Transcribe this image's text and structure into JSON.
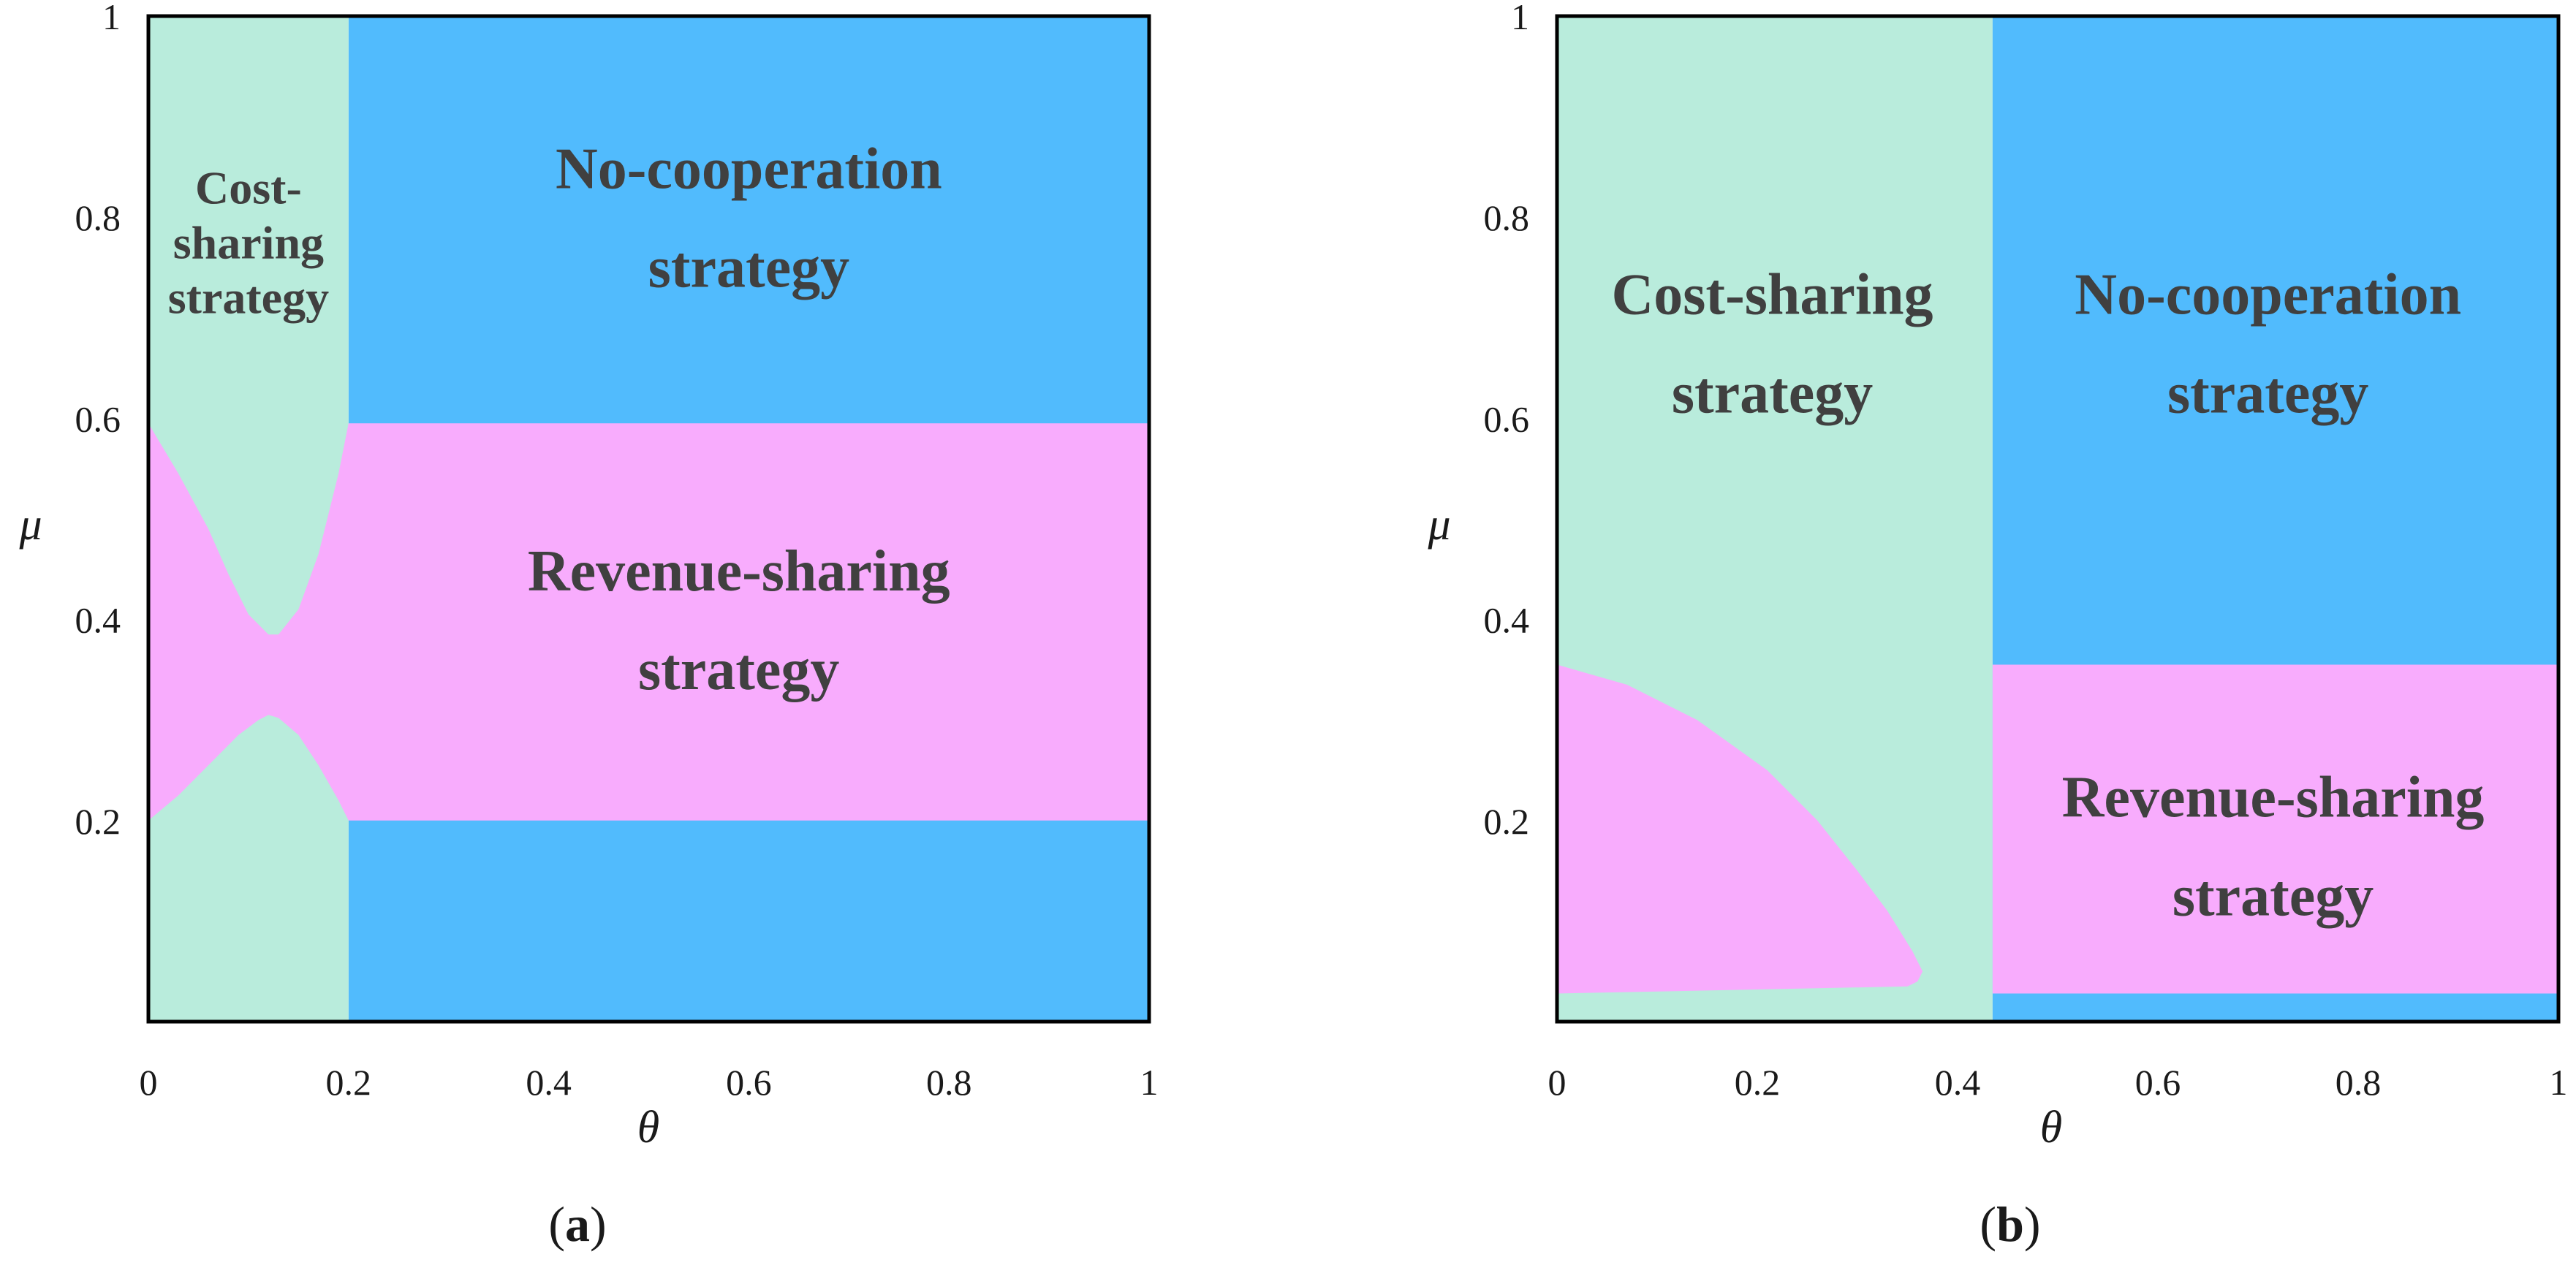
{
  "colors": {
    "cost_sharing": "#b9ecdc",
    "no_cooperation": "#51bbfd",
    "revenue_sharing": "#f8acfd",
    "frame": "#000000",
    "text": "#404040"
  },
  "chart_data": [
    {
      "type": "area",
      "panel_label": {
        "open": "(",
        "letter": "a",
        "close": ")"
      },
      "xlabel": "θ",
      "ylabel": "μ",
      "xlim": [
        0,
        1
      ],
      "ylim": [
        0,
        1
      ],
      "xticks": [
        "0",
        "0.2",
        "0.4",
        "0.6",
        "0.8",
        "1"
      ],
      "yticks": [
        "0.2",
        "0.4",
        "0.6",
        "0.8",
        "1"
      ],
      "regions": [
        {
          "name": "No-cooperation strategy",
          "label_lines": [
            "No-cooperation",
            "strategy"
          ],
          "color_key": "no_cooperation",
          "polygon": [
            [
              0.2,
              0
            ],
            [
              1,
              0
            ],
            [
              1,
              1
            ],
            [
              0.2,
              1
            ]
          ]
        },
        {
          "name": "Cost-sharing strategy",
          "label_lines": [
            "Cost-",
            "sharing",
            "strategy"
          ],
          "color_key": "cost_sharing",
          "polygon": [
            [
              0,
              0
            ],
            [
              0.2,
              0
            ],
            [
              0.2,
              1
            ],
            [
              0,
              1
            ]
          ]
        },
        {
          "name": "Revenue-sharing strategy",
          "label_lines": [
            "Revenue-sharing",
            "strategy"
          ],
          "color_key": "revenue_sharing",
          "polygon": [
            [
              0,
              0.2
            ],
            [
              0.03,
              0.225
            ],
            [
              0.06,
              0.255
            ],
            [
              0.09,
              0.285
            ],
            [
              0.11,
              0.3
            ],
            [
              0.12,
              0.305
            ],
            [
              0.13,
              0.302
            ],
            [
              0.15,
              0.285
            ],
            [
              0.17,
              0.255
            ],
            [
              0.19,
              0.22
            ],
            [
              0.2,
              0.2
            ],
            [
              1,
              0.2
            ],
            [
              1,
              0.595
            ],
            [
              0.2,
              0.595
            ],
            [
              0.19,
              0.545
            ],
            [
              0.17,
              0.465
            ],
            [
              0.15,
              0.41
            ],
            [
              0.13,
              0.385
            ],
            [
              0.12,
              0.385
            ],
            [
              0.1,
              0.405
            ],
            [
              0.08,
              0.445
            ],
            [
              0.06,
              0.49
            ],
            [
              0.03,
              0.545
            ],
            [
              0,
              0.595
            ]
          ]
        }
      ],
      "region_labels": [
        {
          "region": "Cost-sharing strategy",
          "at": [
            0.1,
            0.775
          ]
        },
        {
          "region": "No-cooperation strategy",
          "at": [
            0.6,
            0.8
          ]
        },
        {
          "region": "Revenue-sharing strategy",
          "at": [
            0.59,
            0.4
          ]
        }
      ]
    },
    {
      "type": "area",
      "panel_label": {
        "open": "(",
        "letter": "b",
        "close": ")"
      },
      "xlabel": "θ",
      "ylabel": "μ",
      "xlim": [
        0,
        1
      ],
      "ylim": [
        0,
        1
      ],
      "xticks": [
        "0",
        "0.2",
        "0.4",
        "0.6",
        "0.8",
        "1"
      ],
      "yticks": [
        "0.2",
        "0.4",
        "0.6",
        "0.8",
        "1"
      ],
      "regions": [
        {
          "name": "Cost-sharing strategy",
          "label_lines": [
            "Cost-sharing",
            "strategy"
          ],
          "color_key": "cost_sharing",
          "polygon": [
            [
              0,
              0
            ],
            [
              0.435,
              0
            ],
            [
              0.435,
              1
            ],
            [
              0,
              1
            ]
          ]
        },
        {
          "name": "No-cooperation strategy",
          "label_lines": [
            "No-cooperation",
            "strategy"
          ],
          "color_key": "no_cooperation",
          "polygon": [
            [
              0.435,
              0
            ],
            [
              1,
              0
            ],
            [
              1,
              1
            ],
            [
              0.435,
              1
            ]
          ]
        },
        {
          "name": "Revenue-sharing strategy",
          "label_lines": [
            "Revenue-sharing",
            "strategy"
          ],
          "color_key": "revenue_sharing",
          "polygon": [
            [
              0.435,
              0.028
            ],
            [
              1,
              0.028
            ],
            [
              1,
              0.355
            ],
            [
              0.435,
              0.355
            ]
          ]
        },
        {
          "name": "Revenue-sharing strategy (low θ)",
          "label_lines": [],
          "color_key": "revenue_sharing",
          "polygon": [
            [
              0,
              0.028
            ],
            [
              0.35,
              0.035
            ],
            [
              0.36,
              0.04
            ],
            [
              0.365,
              0.05
            ],
            [
              0.355,
              0.07
            ],
            [
              0.33,
              0.11
            ],
            [
              0.3,
              0.15
            ],
            [
              0.26,
              0.2
            ],
            [
              0.21,
              0.25
            ],
            [
              0.14,
              0.3
            ],
            [
              0.07,
              0.335
            ],
            [
              0,
              0.355
            ]
          ]
        }
      ],
      "region_labels": [
        {
          "region": "Cost-sharing strategy",
          "at": [
            0.215,
            0.675
          ]
        },
        {
          "region": "No-cooperation strategy",
          "at": [
            0.71,
            0.675
          ]
        },
        {
          "region": "Revenue-sharing strategy",
          "at": [
            0.715,
            0.175
          ]
        }
      ]
    }
  ]
}
